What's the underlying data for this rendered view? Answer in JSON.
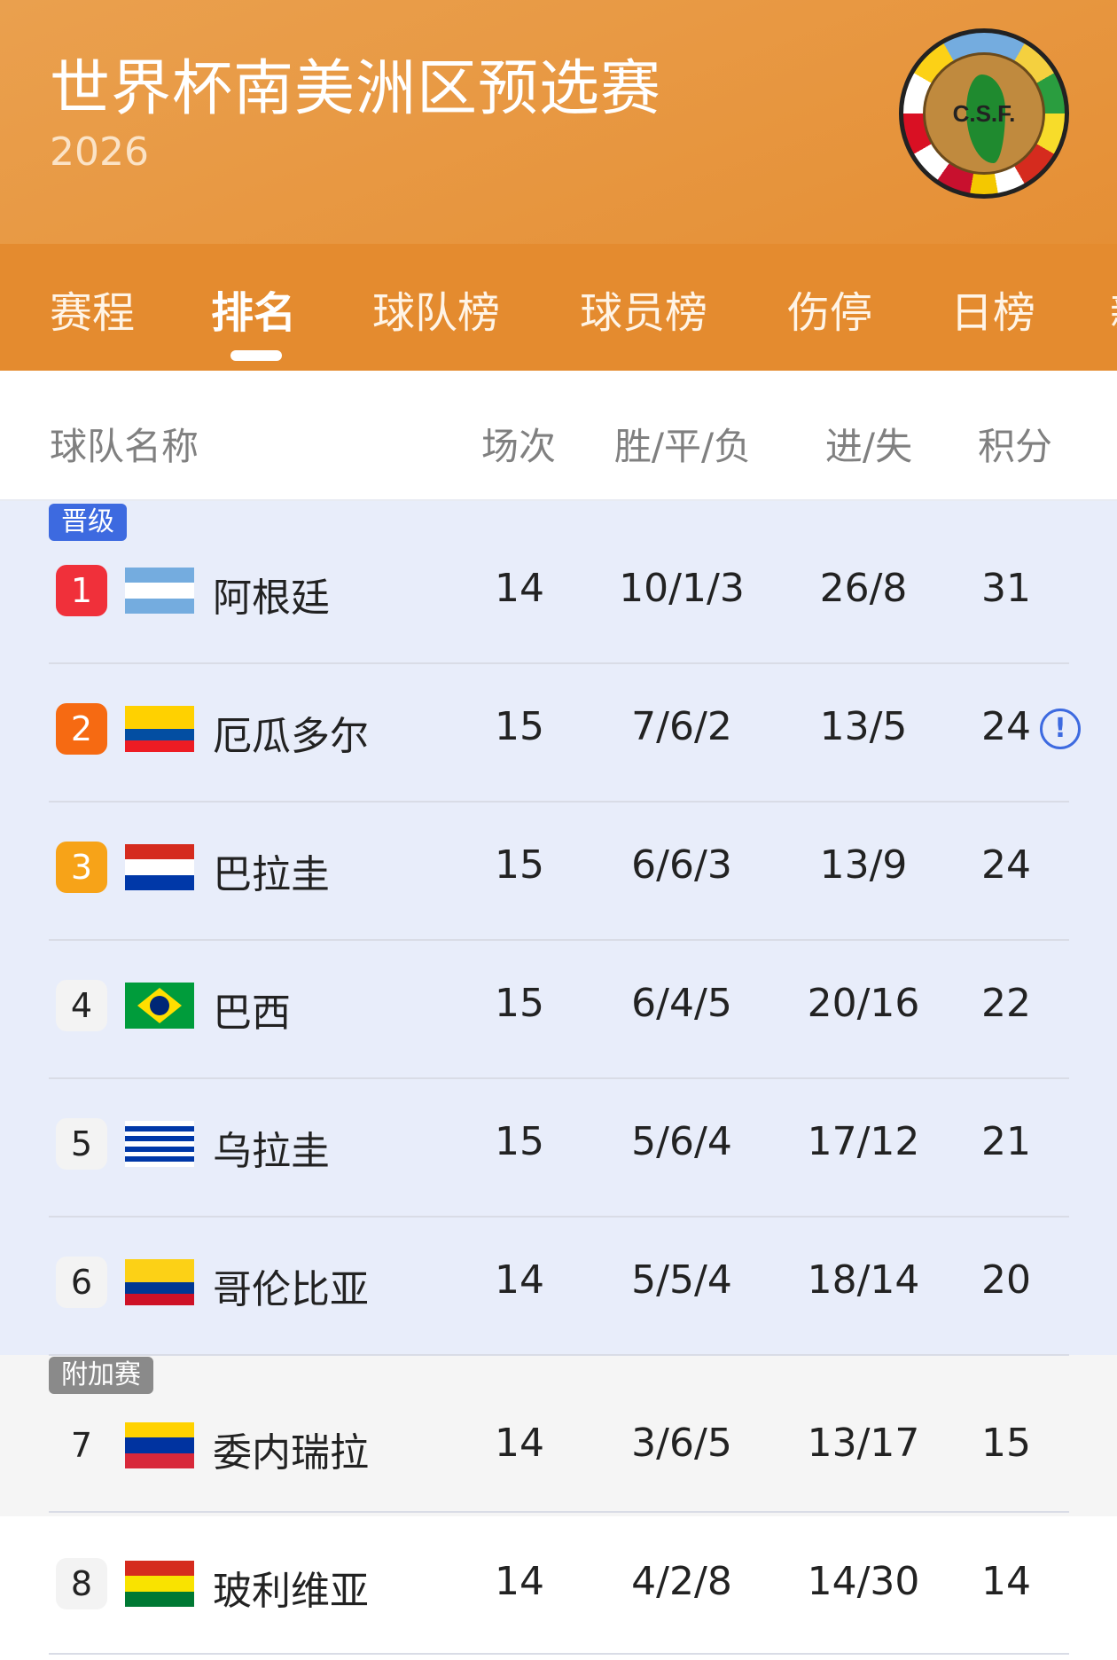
{
  "header": {
    "title": "世界杯南美洲区预选赛",
    "year": "2026",
    "logo_text": "C.S.F."
  },
  "tabs": [
    {
      "label": "赛程"
    },
    {
      "label": "排名",
      "active": true
    },
    {
      "label": "球队榜"
    },
    {
      "label": "球员榜"
    },
    {
      "label": "伤停"
    },
    {
      "label": "日榜"
    },
    {
      "label": "新"
    }
  ],
  "columns": {
    "team": "球队名称",
    "played": "场次",
    "wdl": "胜/平/负",
    "goals": "进/失",
    "points": "积分"
  },
  "sections": {
    "qualified": "晋级",
    "playoff": "附加赛"
  },
  "colors": {
    "accent": "#e48b2f",
    "qualified_bg": "#e8edfa",
    "qualified_tag": "#3d6ae0",
    "playoff_tag": "#8a8a8a",
    "rank1": "#f0303a",
    "rank2": "#f66a12",
    "rank3": "#f7a318"
  },
  "rows": [
    {
      "rank": "1",
      "team": "阿根廷",
      "played": "14",
      "wdl": "10/1/3",
      "goals": "26/8",
      "points": "31",
      "flag": [
        "#74acdf",
        "#ffffff",
        "#74acdf"
      ]
    },
    {
      "rank": "2",
      "team": "厄瓜多尔",
      "played": "15",
      "wdl": "7/6/2",
      "goals": "13/5",
      "points": "24",
      "flag": [
        "#ffd100",
        "#ffd100",
        "#034ea2",
        "#ed1c24"
      ],
      "info_icon": "info-circle-icon"
    },
    {
      "rank": "3",
      "team": "巴拉圭",
      "played": "15",
      "wdl": "6/6/3",
      "goals": "13/9",
      "points": "24",
      "flag": [
        "#d52b1e",
        "#ffffff",
        "#0038a8"
      ]
    },
    {
      "rank": "4",
      "team": "巴西",
      "played": "15",
      "wdl": "6/4/5",
      "goals": "20/16",
      "points": "22",
      "flag": [
        "#009c3b"
      ]
    },
    {
      "rank": "5",
      "team": "乌拉圭",
      "played": "15",
      "wdl": "5/6/4",
      "goals": "17/12",
      "points": "21",
      "flag": [
        "#ffffff",
        "#0038a8",
        "#ffffff",
        "#0038a8",
        "#ffffff",
        "#0038a8",
        "#ffffff",
        "#0038a8",
        "#ffffff"
      ]
    },
    {
      "rank": "6",
      "team": "哥伦比亚",
      "played": "14",
      "wdl": "5/5/4",
      "goals": "18/14",
      "points": "20",
      "flag": [
        "#fcd116",
        "#fcd116",
        "#003893",
        "#ce1126"
      ]
    },
    {
      "rank": "7",
      "team": "委内瑞拉",
      "played": "14",
      "wdl": "3/6/5",
      "goals": "13/17",
      "points": "15",
      "flag": [
        "#ffd200",
        "#0033a0",
        "#d8283a"
      ]
    },
    {
      "rank": "8",
      "team": "玻利维亚",
      "played": "14",
      "wdl": "4/2/8",
      "goals": "14/30",
      "points": "14",
      "flag": [
        "#d52b1e",
        "#f9e300",
        "#007934"
      ]
    }
  ]
}
